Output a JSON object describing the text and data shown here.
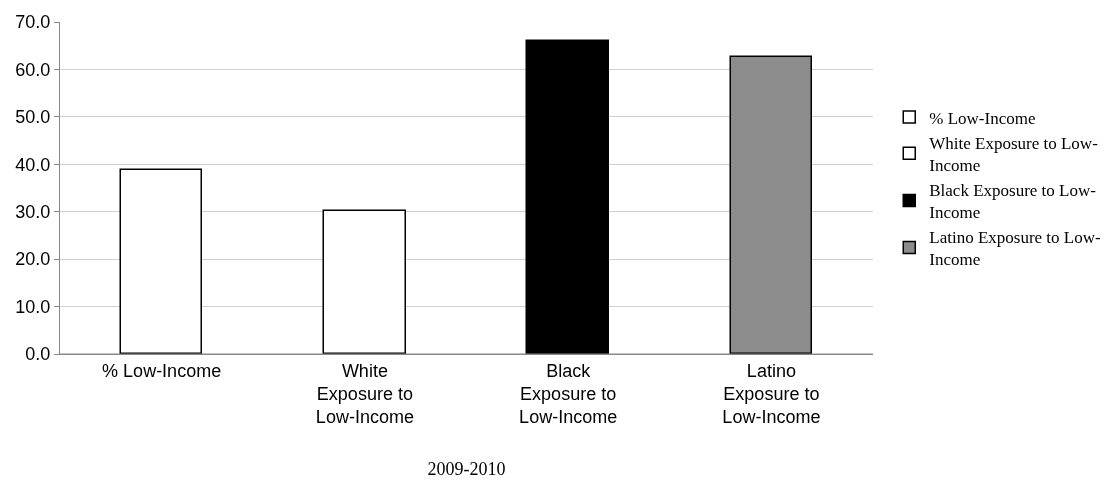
{
  "chart_data": {
    "type": "bar",
    "xlabel": "2009-2010",
    "categories": [
      "% Low-Income",
      "White Exposure to Low-Income",
      "Black Exposure to Low-Income",
      "Latino Exposure to Low-Income"
    ],
    "series": [
      {
        "name": "% Low-Income",
        "color": "#ffffff",
        "values": [
          38.7,
          null,
          null,
          null
        ]
      },
      {
        "name": "White Exposure to Low-Income",
        "color": "#ffffff",
        "values": [
          null,
          30.2,
          null,
          null
        ]
      },
      {
        "name": "Black Exposure to Low-Income",
        "color": "#000000",
        "values": [
          null,
          null,
          65.9,
          null
        ]
      },
      {
        "name": "Latino Exposure to Low-Income",
        "color": "#8c8c8c",
        "values": [
          null,
          null,
          null,
          62.7
        ]
      }
    ],
    "ylim": [
      0,
      70
    ],
    "yticks": [
      {
        "value": 0,
        "label": "0.0"
      },
      {
        "value": 10,
        "label": "10.0"
      },
      {
        "value": 20,
        "label": "20.0"
      },
      {
        "value": 30,
        "label": "30.0"
      },
      {
        "value": 40,
        "label": "40.0"
      },
      {
        "value": 50,
        "label": "50.0"
      },
      {
        "value": 60,
        "label": "60.0"
      },
      {
        "value": 70,
        "label": "70.0"
      }
    ],
    "grid": "y",
    "legend": "right"
  }
}
